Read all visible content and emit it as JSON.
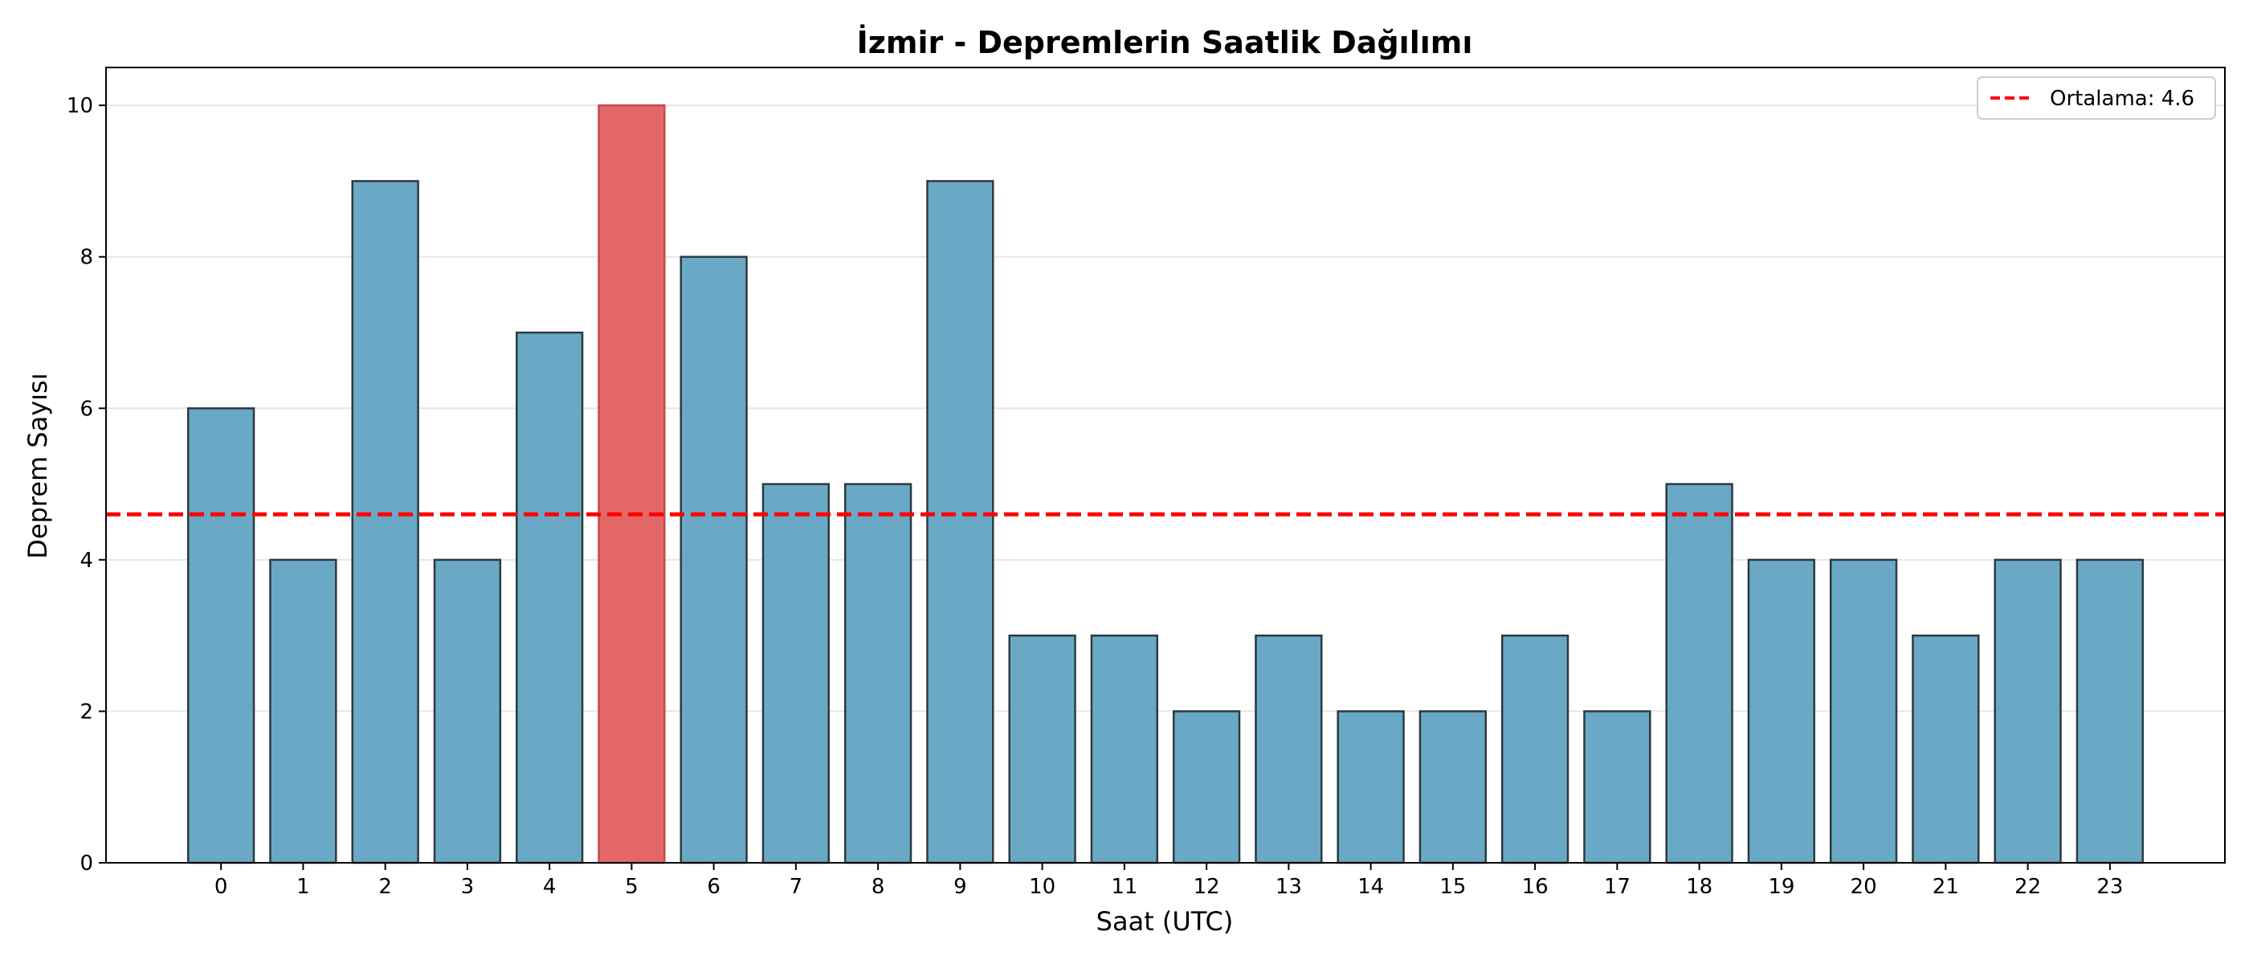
{
  "chart_data": {
    "type": "bar",
    "title": "İzmir - Depremlerin Saatlik Dağılımı",
    "xlabel": "Saat (UTC)",
    "ylabel": "Deprem Sayısı",
    "categories": [
      "0",
      "1",
      "2",
      "3",
      "4",
      "5",
      "6",
      "7",
      "8",
      "9",
      "10",
      "11",
      "12",
      "13",
      "14",
      "15",
      "16",
      "17",
      "18",
      "19",
      "20",
      "21",
      "22",
      "23"
    ],
    "values": [
      6,
      4,
      9,
      4,
      7,
      10,
      8,
      5,
      5,
      9,
      3,
      3,
      2,
      3,
      2,
      2,
      3,
      2,
      5,
      4,
      4,
      3,
      4,
      4
    ],
    "highlight_index": 5,
    "ylim": [
      0,
      10.5
    ],
    "yticks": [
      0,
      2,
      4,
      6,
      8,
      10
    ],
    "grid": "horizontal",
    "mean": 4.6,
    "legend": {
      "label": "Ortalama: 4.6",
      "placement": "top-right"
    },
    "colors": {
      "bar": "#6aa9c6",
      "highlight": "#e36767",
      "edge": "#2b3a40",
      "mean_line": "#ff0000",
      "grid": "#e6e6e6"
    }
  }
}
